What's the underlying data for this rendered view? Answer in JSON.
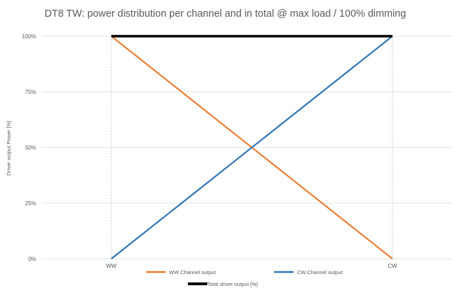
{
  "chart_data": {
    "type": "line",
    "title": "DT8 TW: power distribution per channel and in total @ max load / 100% dimming",
    "ylabel": "Driver output Power [%]",
    "xlabel": "",
    "categories": [
      "WW",
      "CW"
    ],
    "y_ticks": [
      "0%",
      "25%",
      "50%",
      "75%",
      "100%"
    ],
    "ylim": [
      0,
      100
    ],
    "grid": true,
    "legend_position": "bottom",
    "series": [
      {
        "name": "WW Channel output",
        "values": [
          100,
          0
        ],
        "color": "#ED7D31"
      },
      {
        "name": "CW Channel output",
        "values": [
          0,
          100
        ],
        "color": "#2E75B6"
      },
      {
        "name": "Total driver output [%]",
        "values": [
          100,
          100
        ],
        "color": "#000000"
      }
    ]
  }
}
